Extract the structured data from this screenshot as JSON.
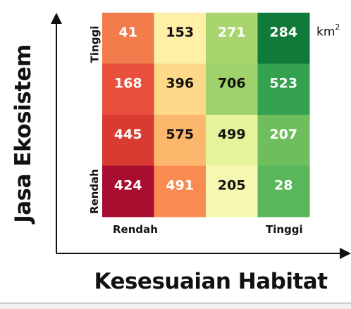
{
  "chart_data": {
    "type": "heatmap",
    "xlabel": "Kesesuaian Habitat",
    "ylabel": "Jasa Ekosistem",
    "unit": "km",
    "unit_sup": "2",
    "x_low_label": "Rendah",
    "x_high_label": "Tinggi",
    "y_low_label": "Rendah",
    "y_high_label": "Tinggi",
    "columns": 4,
    "rows": 4,
    "values": [
      [
        41,
        153,
        271,
        284
      ],
      [
        168,
        396,
        706,
        523
      ],
      [
        445,
        575,
        499,
        207
      ],
      [
        424,
        491,
        205,
        28
      ]
    ],
    "cell_colors": [
      [
        "#f27c4c",
        "#fff0a8",
        "#a8d56e",
        "#0f7a3a"
      ],
      [
        "#e8503d",
        "#fed98a",
        "#9fd26b",
        "#33a14d"
      ],
      [
        "#d93b30",
        "#fdb76c",
        "#e6f39a",
        "#6ebe5e"
      ],
      [
        "#a80c2e",
        "#f88a52",
        "#f6f8b2",
        "#59b65a"
      ]
    ],
    "text_colors": [
      [
        "#ffffff",
        "#111111",
        "#ffffff",
        "#ffffff"
      ],
      [
        "#ffffff",
        "#111111",
        "#111111",
        "#ffffff"
      ],
      [
        "#ffffff",
        "#111111",
        "#111111",
        "#ffffff"
      ],
      [
        "#ffffff",
        "#ffffff",
        "#111111",
        "#ffffff"
      ]
    ]
  }
}
